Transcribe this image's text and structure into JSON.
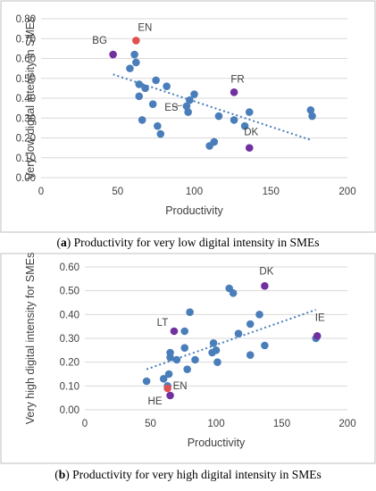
{
  "chart_data": [
    {
      "type": "scatter",
      "xlabel": "Productivity",
      "ylabel": "Very low digital intensity in SMEs",
      "xlim": [
        0,
        200
      ],
      "ylim": [
        0,
        0.8
      ],
      "x_ticks": [
        "0",
        "50",
        "100",
        "150",
        "200"
      ],
      "y_ticks": [
        "0.00",
        "0.10",
        "0.20",
        "0.30",
        "0.40",
        "0.50",
        "0.60",
        "0.70",
        "0.80"
      ],
      "grid": "horizontal",
      "trendline": {
        "style": "dotted",
        "x": [
          47,
          176
        ],
        "y": [
          0.52,
          0.19
        ]
      },
      "series": [
        {
          "color": "#4a7ebb",
          "points": [
            [
              58,
              0.55
            ],
            [
              61,
              0.62
            ],
            [
              62,
              0.58
            ],
            [
              64,
              0.47
            ],
            [
              64,
              0.41
            ],
            [
              66,
              0.29
            ],
            [
              68,
              0.45
            ],
            [
              73,
              0.37
            ],
            [
              75,
              0.49
            ],
            [
              76,
              0.26
            ],
            [
              78,
              0.22
            ],
            [
              82,
              0.46
            ],
            [
              96,
              0.33
            ],
            [
              97,
              0.39
            ],
            [
              100,
              0.42
            ],
            [
              110,
              0.16
            ],
            [
              113,
              0.18
            ],
            [
              116,
              0.31
            ],
            [
              126,
              0.29
            ],
            [
              133,
              0.26
            ],
            [
              136,
              0.33
            ],
            [
              176,
              0.34
            ],
            [
              177,
              0.31
            ]
          ]
        },
        {
          "color": "#7030a0",
          "points": [
            [
              47,
              0.62
            ],
            [
              126,
              0.43
            ],
            [
              136,
              0.15
            ]
          ]
        },
        {
          "color": "#e05050",
          "points": [
            [
              62,
              0.69
            ]
          ]
        },
        {
          "color": "#4a7ebb",
          "points": [
            [
              95,
              0.36
            ]
          ]
        }
      ],
      "annotations": [
        {
          "text": "BG",
          "x": 47,
          "y": 0.62
        },
        {
          "text": "EN",
          "x": 62,
          "y": 0.69
        },
        {
          "text": "FR",
          "x": 126,
          "y": 0.43
        },
        {
          "text": "ES",
          "x": 95,
          "y": 0.36
        },
        {
          "text": "DK",
          "x": 136,
          "y": 0.15
        }
      ],
      "caption_label": "a",
      "caption_text": "Productivity for very low digital intensity in SMEs"
    },
    {
      "type": "scatter",
      "xlabel": "Productivity",
      "ylabel": "Very high digital intensity for SMEs",
      "xlim": [
        0,
        200
      ],
      "ylim": [
        0,
        0.6
      ],
      "x_ticks": [
        "0",
        "50",
        "100",
        "150",
        "200"
      ],
      "y_ticks": [
        "0.00",
        "0.10",
        "0.20",
        "0.30",
        "0.40",
        "0.50",
        "0.60"
      ],
      "grid": "horizontal",
      "trendline": {
        "style": "dotted",
        "x": [
          47,
          176
        ],
        "y": [
          0.17,
          0.42
        ]
      },
      "series": [
        {
          "color": "#4a7ebb",
          "points": [
            [
              47,
              0.12
            ],
            [
              60,
              0.13
            ],
            [
              63,
              0.1
            ],
            [
              64,
              0.15
            ],
            [
              65,
              0.24
            ],
            [
              65,
              0.22
            ],
            [
              70,
              0.21
            ],
            [
              76,
              0.26
            ],
            [
              76,
              0.33
            ],
            [
              78,
              0.17
            ],
            [
              80,
              0.41
            ],
            [
              84,
              0.21
            ],
            [
              97,
              0.24
            ],
            [
              98,
              0.28
            ],
            [
              100,
              0.25
            ],
            [
              101,
              0.2
            ],
            [
              110,
              0.51
            ],
            [
              113,
              0.49
            ],
            [
              117,
              0.32
            ],
            [
              126,
              0.23
            ],
            [
              126,
              0.36
            ],
            [
              133,
              0.4
            ],
            [
              137,
              0.27
            ],
            [
              176,
              0.3
            ]
          ]
        },
        {
          "color": "#7030a0",
          "points": [
            [
              65,
              0.06
            ],
            [
              68,
              0.33
            ],
            [
              137,
              0.52
            ],
            [
              177,
              0.31
            ]
          ]
        },
        {
          "color": "#e05050",
          "points": [
            [
              63,
              0.09
            ]
          ]
        }
      ],
      "annotations": [
        {
          "text": "DK",
          "x": 137,
          "y": 0.52
        },
        {
          "text": "LT",
          "x": 68,
          "y": 0.33
        },
        {
          "text": "IE",
          "x": 177,
          "y": 0.31
        },
        {
          "text": "EN",
          "x": 63,
          "y": 0.09
        },
        {
          "text": "HE",
          "x": 65,
          "y": 0.06
        }
      ],
      "caption_label": "b",
      "caption_text": "Productivity for very high digital intensity in SMEs"
    }
  ]
}
